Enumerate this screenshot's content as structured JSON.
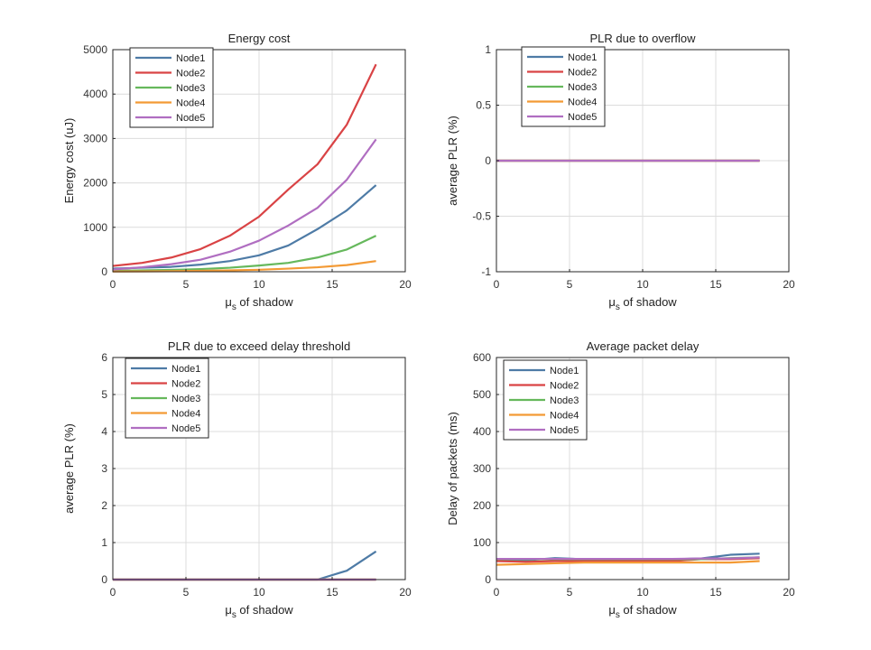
{
  "series_colors": [
    "#4e7ba6",
    "#d94345",
    "#66b85c",
    "#f39a35",
    "#b06ec1"
  ],
  "chart_data": [
    {
      "type": "line",
      "title": "Energy cost",
      "xlabel_mu": "μ",
      "xlabel_sub": "s",
      "xlabel_rest": " of shadow",
      "ylabel": "Energy cost (uJ)",
      "xlim": [
        0,
        20
      ],
      "ylim": [
        0,
        5000
      ],
      "xticks": [
        0,
        5,
        10,
        15,
        20
      ],
      "yticks": [
        0,
        1000,
        2000,
        3000,
        4000,
        5000
      ],
      "grid": true,
      "legend_position": "top-left",
      "x": [
        0,
        2,
        4,
        6,
        8,
        10,
        12,
        14,
        16,
        18
      ],
      "series": [
        {
          "name": "Node1",
          "values": [
            70,
            90,
            110,
            160,
            240,
            370,
            590,
            960,
            1380,
            1950
          ]
        },
        {
          "name": "Node2",
          "values": [
            130,
            200,
            320,
            510,
            810,
            1240,
            1850,
            2420,
            3310,
            4670
          ]
        },
        {
          "name": "Node3",
          "values": [
            20,
            30,
            40,
            60,
            90,
            140,
            200,
            320,
            500,
            810
          ]
        },
        {
          "name": "Node4",
          "values": [
            5,
            8,
            12,
            20,
            30,
            45,
            70,
            100,
            150,
            240
          ]
        },
        {
          "name": "Node5",
          "values": [
            50,
            100,
            170,
            270,
            450,
            700,
            1040,
            1440,
            2070,
            2980
          ]
        }
      ]
    },
    {
      "type": "line",
      "title": "PLR due to overflow",
      "xlabel_mu": "μ",
      "xlabel_sub": "s",
      "xlabel_rest": " of shadow",
      "ylabel": "average PLR (%)",
      "xlim": [
        0,
        20
      ],
      "ylim": [
        -1,
        1
      ],
      "xticks": [
        0,
        5,
        10,
        15,
        20
      ],
      "yticks": [
        -1,
        -0.5,
        0,
        0.5,
        1
      ],
      "grid": true,
      "legend_position": "top-left",
      "x": [
        0,
        2,
        4,
        6,
        8,
        10,
        12,
        14,
        16,
        18
      ],
      "series": [
        {
          "name": "Node1",
          "values": [
            0,
            0,
            0,
            0,
            0,
            0,
            0,
            0,
            0,
            0
          ]
        },
        {
          "name": "Node2",
          "values": [
            0,
            0,
            0,
            0,
            0,
            0,
            0,
            0,
            0,
            0
          ]
        },
        {
          "name": "Node3",
          "values": [
            0,
            0,
            0,
            0,
            0,
            0,
            0,
            0,
            0,
            0
          ]
        },
        {
          "name": "Node4",
          "values": [
            0,
            0,
            0,
            0,
            0,
            0,
            0,
            0,
            0,
            0
          ]
        },
        {
          "name": "Node5",
          "values": [
            0,
            0,
            0,
            0,
            0,
            0,
            0,
            0,
            0,
            0
          ]
        }
      ]
    },
    {
      "type": "line",
      "title": "PLR due to exceed delay threshold",
      "xlabel_mu": "μ",
      "xlabel_sub": "s",
      "xlabel_rest": " of shadow",
      "ylabel": "average PLR (%)",
      "xlim": [
        0,
        20
      ],
      "ylim": [
        0,
        6
      ],
      "xticks": [
        0,
        5,
        10,
        15,
        20
      ],
      "yticks": [
        0,
        1,
        2,
        3,
        4,
        5,
        6
      ],
      "grid": true,
      "legend_position": "top-left",
      "x": [
        0,
        2,
        4,
        6,
        8,
        10,
        12,
        14,
        16,
        18
      ],
      "series": [
        {
          "name": "Node1",
          "values": [
            0,
            0,
            0,
            0,
            0,
            0,
            0,
            0,
            0.24,
            0.76
          ]
        },
        {
          "name": "Node2",
          "values": [
            0,
            0,
            0,
            0,
            0,
            0,
            0,
            0,
            0,
            0
          ]
        },
        {
          "name": "Node3",
          "values": [
            0,
            0,
            0,
            0,
            0,
            0,
            0,
            0,
            0,
            0
          ]
        },
        {
          "name": "Node4",
          "values": [
            0,
            0,
            0,
            0,
            0,
            0,
            0,
            0,
            0,
            0
          ]
        },
        {
          "name": "Node5",
          "values": [
            0,
            0,
            0,
            0,
            0,
            0,
            0,
            0,
            0,
            0
          ]
        }
      ]
    },
    {
      "type": "line",
      "title": "Average packet delay",
      "xlabel_mu": "μ",
      "xlabel_sub": "s",
      "xlabel_rest": " of shadow",
      "ylabel": "Delay of packets (ms)",
      "xlim": [
        0,
        20
      ],
      "ylim": [
        0,
        600
      ],
      "xticks": [
        0,
        5,
        10,
        15,
        20
      ],
      "yticks": [
        0,
        100,
        200,
        300,
        400,
        500,
        600
      ],
      "grid": true,
      "legend_position": "top-left",
      "x": [
        0,
        2,
        4,
        6,
        8,
        10,
        12,
        14,
        16,
        18
      ],
      "series": [
        {
          "name": "Node1",
          "values": [
            52,
            52,
            58,
            55,
            55,
            55,
            55,
            57,
            67,
            70
          ]
        },
        {
          "name": "Node2",
          "values": [
            50,
            48,
            50,
            50,
            50,
            50,
            50,
            55,
            55,
            58
          ]
        },
        {
          "name": "Node3",
          "values": [
            55,
            55,
            55,
            55,
            55,
            55,
            55,
            55,
            58,
            60
          ]
        },
        {
          "name": "Node4",
          "values": [
            40,
            42,
            44,
            46,
            46,
            46,
            46,
            46,
            46,
            50
          ]
        },
        {
          "name": "Node5",
          "values": [
            56,
            56,
            56,
            56,
            56,
            56,
            56,
            57,
            57,
            60
          ]
        }
      ]
    }
  ]
}
